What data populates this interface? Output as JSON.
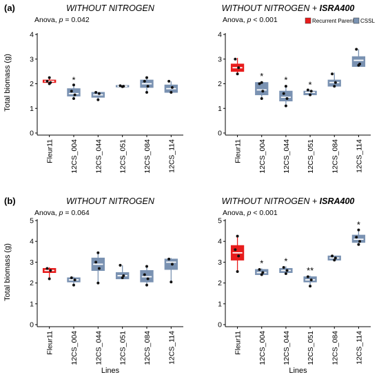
{
  "figure_labels": {
    "a": "(a)",
    "b": "(b)"
  },
  "legend": {
    "items": [
      {
        "label": "Recurrent Parent",
        "color": "#e81c1c"
      },
      {
        "label": "CSSL",
        "color": "#7a92b2"
      }
    ]
  },
  "colors": {
    "parent": "#e81c1c",
    "cssl": "#7a92b2",
    "axis": "#000000"
  },
  "chart_data": [
    {
      "type": "boxplot",
      "panel": "(a)",
      "title_parts": [
        {
          "text": "WITHOUT NITROGEN",
          "italic": true
        }
      ],
      "anova_parts": [
        {
          "text": "Anova, ",
          "italic": false
        },
        {
          "text": "p",
          "italic": true
        },
        {
          "text": " = 0.042",
          "italic": false
        }
      ],
      "ylabel": "Total biomass (g)",
      "xlabel": "",
      "ylim": [
        0,
        4
      ],
      "yticks": [
        0,
        1,
        2,
        3,
        4
      ],
      "categories": [
        "Fleur11",
        "12CS_004",
        "12CS_044",
        "12CS_051",
        "12CS_084",
        "12CS_114"
      ],
      "boxes": [
        {
          "group": "parent",
          "q1": 2.05,
          "median": 2.1,
          "q3": 2.15,
          "min": 2.0,
          "max": 2.25,
          "points": [
            2.0,
            2.05,
            2.1,
            2.25
          ],
          "sig": ""
        },
        {
          "group": "cssl",
          "q1": 1.5,
          "median": 1.6,
          "q3": 1.8,
          "min": 1.4,
          "max": 1.95,
          "points": [
            1.4,
            1.55,
            1.7,
            1.95
          ],
          "sig": "*"
        },
        {
          "group": "cssl",
          "q1": 1.45,
          "median": 1.55,
          "q3": 1.65,
          "min": 1.35,
          "max": 1.65,
          "points": [
            1.35,
            1.6,
            1.65
          ],
          "sig": ""
        },
        {
          "group": "cssl",
          "q1": 1.87,
          "median": 1.9,
          "q3": 1.93,
          "min": 1.87,
          "max": 1.93,
          "points": [
            1.88,
            1.9,
            1.92
          ],
          "sig": ""
        },
        {
          "group": "cssl",
          "q1": 1.85,
          "median": 2.0,
          "q3": 2.15,
          "min": 1.65,
          "max": 2.3,
          "points": [
            1.65,
            1.9,
            2.1,
            2.25
          ],
          "sig": ""
        },
        {
          "group": "cssl",
          "q1": 1.65,
          "median": 1.8,
          "q3": 1.95,
          "min": 1.6,
          "max": 2.1,
          "points": [
            1.65,
            1.85,
            2.1
          ],
          "sig": ""
        }
      ]
    },
    {
      "type": "boxplot",
      "panel": "",
      "title_parts": [
        {
          "text": "WITHOUT NITROGEN + ",
          "italic": true
        },
        {
          "text": "ISRA400",
          "italic": true,
          "bold": true
        }
      ],
      "anova_parts": [
        {
          "text": "Anova, ",
          "italic": false
        },
        {
          "text": "p",
          "italic": true
        },
        {
          "text": " < 0.001",
          "italic": false
        }
      ],
      "ylabel": "",
      "xlabel": "",
      "ylim": [
        0,
        4
      ],
      "yticks": [
        0,
        1,
        2,
        3,
        4
      ],
      "categories": [
        "Fleur11",
        "12CS_004",
        "12CS_044",
        "12CS_051",
        "12CS_084",
        "12CS_114"
      ],
      "boxes": [
        {
          "group": "parent",
          "q1": 2.5,
          "median": 2.65,
          "q3": 2.8,
          "min": 2.35,
          "max": 3.05,
          "points": [
            2.4,
            2.65,
            3.0
          ],
          "sig": ""
        },
        {
          "group": "cssl",
          "q1": 1.55,
          "median": 1.75,
          "q3": 2.05,
          "min": 1.35,
          "max": 2.1,
          "points": [
            1.4,
            1.7,
            2.0,
            2.05
          ],
          "sig": "*"
        },
        {
          "group": "cssl",
          "q1": 1.3,
          "median": 1.45,
          "q3": 1.7,
          "min": 1.1,
          "max": 1.95,
          "points": [
            1.1,
            1.4,
            1.6,
            1.9
          ],
          "sig": "*"
        },
        {
          "group": "cssl",
          "q1": 1.55,
          "median": 1.65,
          "q3": 1.7,
          "min": 1.5,
          "max": 1.75,
          "points": [
            1.55,
            1.7,
            1.75
          ],
          "sig": "*"
        },
        {
          "group": "cssl",
          "q1": 1.9,
          "median": 2.05,
          "q3": 2.15,
          "min": 1.9,
          "max": 2.45,
          "points": [
            1.9,
            2.05,
            2.4
          ],
          "sig": ""
        },
        {
          "group": "cssl",
          "q1": 2.7,
          "median": 2.95,
          "q3": 3.1,
          "min": 2.7,
          "max": 3.4,
          "points": [
            2.75,
            2.8,
            3.4
          ],
          "sig": ""
        }
      ]
    },
    {
      "type": "boxplot",
      "panel": "(b)",
      "title_parts": [
        {
          "text": "WITHOUT NITROGEN",
          "italic": true
        }
      ],
      "anova_parts": [
        {
          "text": "Anova, ",
          "italic": false
        },
        {
          "text": "p",
          "italic": true
        },
        {
          "text": " = 0.064",
          "italic": false
        }
      ],
      "ylabel": "Total biomass (g)",
      "xlabel": "Lines",
      "ylim": [
        0,
        5
      ],
      "yticks": [
        0,
        1,
        2,
        3,
        4,
        5
      ],
      "categories": [
        "Fleur11",
        "12CS_004",
        "12CS_044",
        "12CS_051",
        "12CS_084",
        "12CS_114"
      ],
      "boxes": [
        {
          "group": "parent",
          "q1": 2.5,
          "median": 2.6,
          "q3": 2.7,
          "min": 2.2,
          "max": 2.75,
          "points": [
            2.2,
            2.6,
            2.7
          ],
          "sig": ""
        },
        {
          "group": "cssl",
          "q1": 2.05,
          "median": 2.15,
          "q3": 2.25,
          "min": 1.9,
          "max": 2.3,
          "points": [
            1.9,
            2.15,
            2.25
          ],
          "sig": ""
        },
        {
          "group": "cssl",
          "q1": 2.6,
          "median": 2.9,
          "q3": 3.2,
          "min": 2.0,
          "max": 3.45,
          "points": [
            2.0,
            2.7,
            3.0,
            3.45
          ],
          "sig": ""
        },
        {
          "group": "cssl",
          "q1": 2.2,
          "median": 2.35,
          "q3": 2.5,
          "min": 2.2,
          "max": 2.85,
          "points": [
            2.25,
            2.35,
            2.85
          ],
          "sig": ""
        },
        {
          "group": "cssl",
          "q1": 2.05,
          "median": 2.3,
          "q3": 2.6,
          "min": 1.85,
          "max": 2.8,
          "points": [
            1.9,
            2.2,
            2.4,
            2.8
          ],
          "sig": ""
        },
        {
          "group": "cssl",
          "q1": 2.65,
          "median": 3.0,
          "q3": 3.15,
          "min": 2.05,
          "max": 3.2,
          "points": [
            2.05,
            2.9,
            3.15
          ],
          "sig": ""
        }
      ]
    },
    {
      "type": "boxplot",
      "panel": "",
      "title_parts": [
        {
          "text": "WITHOUT NITROGEN + ",
          "italic": true
        },
        {
          "text": "ISRA400",
          "italic": true,
          "bold": true
        }
      ],
      "anova_parts": [
        {
          "text": "Anova, ",
          "italic": false
        },
        {
          "text": "p",
          "italic": true
        },
        {
          "text": " < 0.001",
          "italic": false
        }
      ],
      "ylabel": "",
      "xlabel": "Lines",
      "ylim": [
        0,
        5
      ],
      "yticks": [
        0,
        1,
        2,
        3,
        4,
        5
      ],
      "categories": [
        "Fleur11",
        "12CS_004",
        "12CS_044",
        "12CS_051",
        "12CS_084",
        "12CS_114"
      ],
      "boxes": [
        {
          "group": "parent",
          "q1": 3.1,
          "median": 3.45,
          "q3": 3.8,
          "min": 2.55,
          "max": 4.25,
          "points": [
            2.55,
            3.3,
            3.6,
            4.25
          ],
          "sig": ""
        },
        {
          "group": "cssl",
          "q1": 2.4,
          "median": 2.5,
          "q3": 2.65,
          "min": 2.4,
          "max": 2.7,
          "points": [
            2.4,
            2.5,
            2.65
          ],
          "sig": "*"
        },
        {
          "group": "cssl",
          "q1": 2.5,
          "median": 2.6,
          "q3": 2.7,
          "min": 2.4,
          "max": 2.8,
          "points": [
            2.45,
            2.6,
            2.75
          ],
          "sig": "*"
        },
        {
          "group": "cssl",
          "q1": 2.05,
          "median": 2.15,
          "q3": 2.3,
          "min": 1.85,
          "max": 2.35,
          "points": [
            1.85,
            2.15,
            2.3
          ],
          "sig": "**"
        },
        {
          "group": "cssl",
          "q1": 3.1,
          "median": 3.2,
          "q3": 3.3,
          "min": 3.1,
          "max": 3.3,
          "points": [
            3.1,
            3.2,
            3.3
          ],
          "sig": ""
        },
        {
          "group": "cssl",
          "q1": 3.95,
          "median": 4.1,
          "q3": 4.3,
          "min": 3.8,
          "max": 4.55,
          "points": [
            3.85,
            4.0,
            4.2,
            4.55
          ],
          "sig": "*"
        }
      ]
    }
  ]
}
